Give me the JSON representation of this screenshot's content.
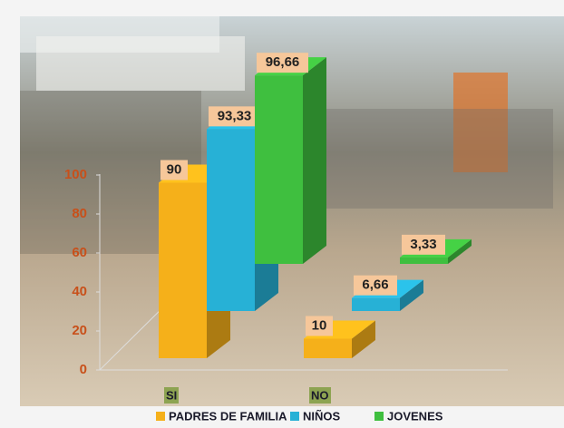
{
  "chart_data": {
    "type": "bar3d",
    "categories": [
      "SI",
      "NO"
    ],
    "series": [
      {
        "name": "PADRES DE FAMILIA",
        "color": "#f5b01a",
        "values": [
          90,
          10
        ],
        "value_labels": [
          "90",
          "10"
        ]
      },
      {
        "name": "NIÑOS",
        "color": "#27b1d6",
        "values": [
          93.33,
          6.66
        ],
        "value_labels": [
          "93,33",
          "6,66"
        ]
      },
      {
        "name": "JOVENES",
        "color": "#3fbf3f",
        "values": [
          96.66,
          3.33
        ],
        "value_labels": [
          "96,66",
          "3,33"
        ]
      }
    ],
    "ylim": [
      0,
      100
    ],
    "yticks": [
      0,
      20,
      40,
      60,
      80,
      100
    ]
  }
}
